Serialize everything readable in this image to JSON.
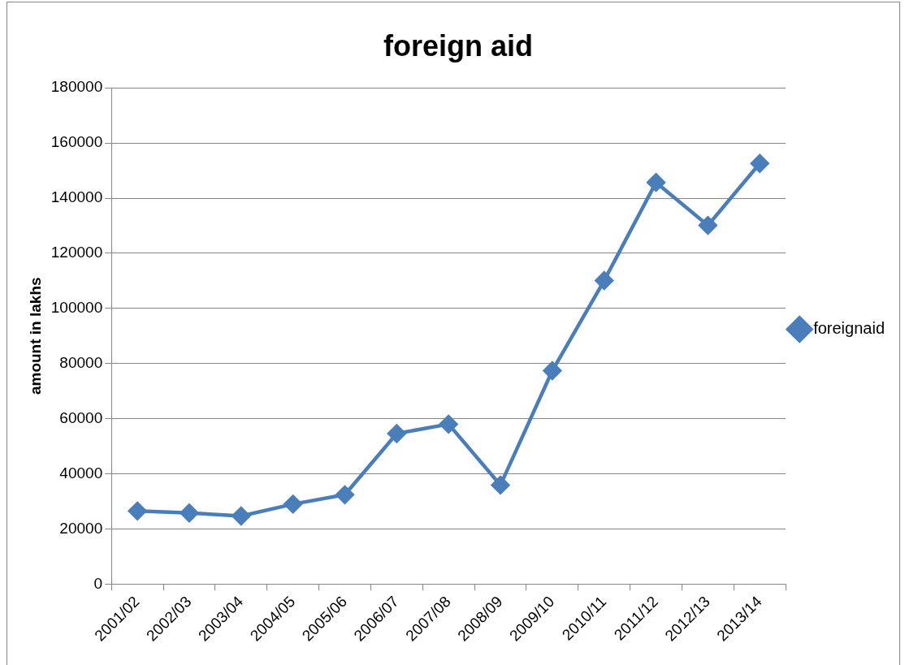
{
  "chart_data": {
    "type": "line",
    "title": "foreign aid",
    "ylabel": "amount in lakhs",
    "categories": [
      "2001/02",
      "2002/03",
      "2003/04",
      "2004/05",
      "2005/06",
      "2006/07",
      "2007/08",
      "2008/09",
      "2009/10",
      "2010/11",
      "2011/12",
      "2012/13",
      "2013/14"
    ],
    "series": [
      {
        "name": "foreignaid",
        "color": "#4a7ebb",
        "values": [
          26500,
          25800,
          24700,
          29000,
          32400,
          54600,
          58000,
          35900,
          77400,
          110100,
          145700,
          130100,
          152600
        ]
      }
    ],
    "ylim": [
      0,
      180000
    ],
    "yticks": [
      0,
      20000,
      40000,
      60000,
      80000,
      100000,
      120000,
      140000,
      160000,
      180000
    ],
    "grid": "y",
    "legend": "right",
    "marker": "diamond",
    "line_style": "solid"
  }
}
